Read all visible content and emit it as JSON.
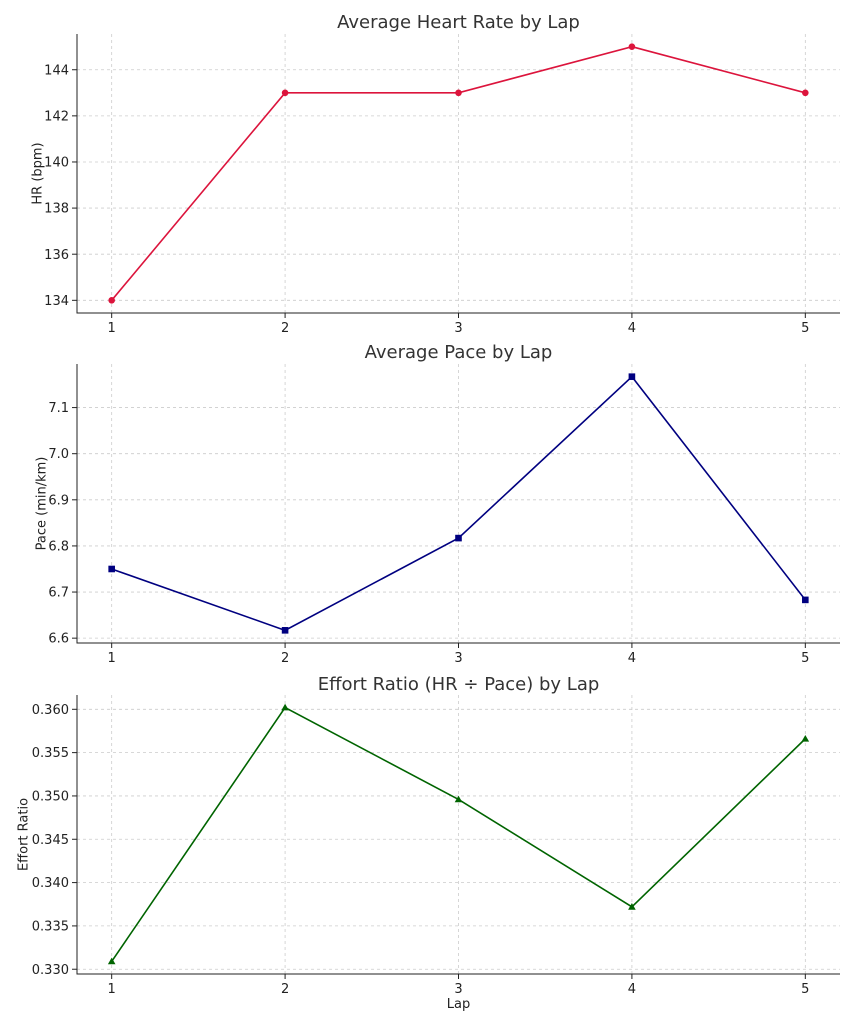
{
  "chart_data": [
    {
      "type": "line",
      "title": "Average Heart Rate by Lap",
      "xlabel": "",
      "ylabel": "HR (bpm)",
      "x": [
        1,
        2,
        3,
        4,
        5
      ],
      "series": [
        {
          "values": [
            134,
            143,
            143,
            145,
            143
          ]
        }
      ],
      "xlim": [
        0.8,
        5.2
      ],
      "ylim": [
        133.45,
        145.55
      ],
      "yticks": [
        134,
        136,
        138,
        140,
        142,
        144
      ],
      "ytick_decimals": 0,
      "grid": true,
      "color": "#dc143c",
      "marker": "circle"
    },
    {
      "type": "line",
      "title": "Average Pace by Lap",
      "xlabel": "",
      "ylabel": "Pace (min/km)",
      "x": [
        1,
        2,
        3,
        4,
        5
      ],
      "series": [
        {
          "values": [
            6.75,
            6.617,
            6.817,
            7.167,
            6.683
          ]
        }
      ],
      "xlim": [
        0.8,
        5.2
      ],
      "ylim": [
        6.5895,
        7.1945
      ],
      "yticks": [
        6.6,
        6.7,
        6.8,
        6.9,
        7.0,
        7.1
      ],
      "ytick_decimals": 1,
      "grid": true,
      "color": "#000080",
      "marker": "square"
    },
    {
      "type": "line",
      "title": "Effort Ratio (HR ÷ Pace) by Lap",
      "xlabel": "Lap",
      "ylabel": "Effort Ratio",
      "x": [
        1,
        2,
        3,
        4,
        5
      ],
      "series": [
        {
          "values": [
            0.3309,
            0.3602,
            0.3496,
            0.3372,
            0.3566
          ]
        }
      ],
      "xlim": [
        0.8,
        5.2
      ],
      "ylim": [
        0.32945,
        0.36165
      ],
      "yticks": [
        0.33,
        0.335,
        0.34,
        0.345,
        0.35,
        0.355,
        0.36
      ],
      "ytick_decimals": 3,
      "grid": true,
      "color": "#006400",
      "marker": "triangle"
    }
  ]
}
